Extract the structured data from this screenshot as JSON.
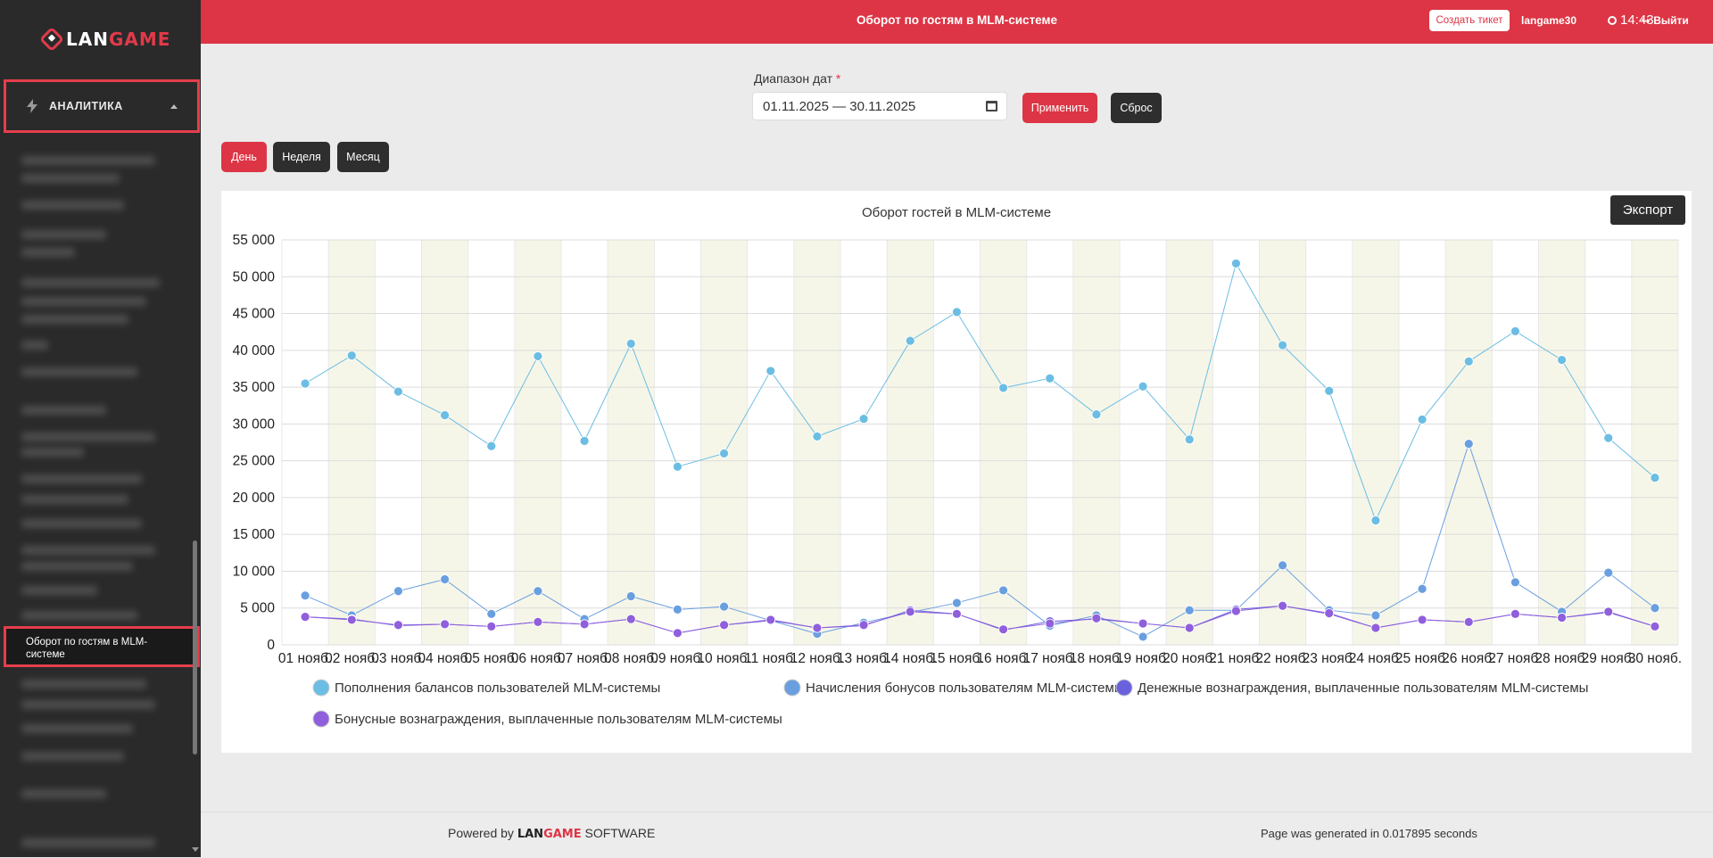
{
  "app": {
    "logo_prefix": "LAN",
    "logo_suffix": "GAME"
  },
  "header": {
    "title": "Оборот по гостям в MLM-системе",
    "ticket_label": "Создать тикет",
    "user": "langame30",
    "time": "14:43",
    "logout_label": "Выйти"
  },
  "sidebar": {
    "section_label": "АНАЛИТИКА",
    "active_item": "Оборот по гостям в MLM-системе"
  },
  "filters": {
    "date_label": "Диапазон дат",
    "required_mark": "*",
    "date_value": "01.11.2025 — 30.11.2025",
    "apply_label": "Применить",
    "reset_label": "Сброс",
    "period_day": "День",
    "period_week": "Неделя",
    "period_month": "Месяц"
  },
  "export_label": "Экспорт",
  "footer": {
    "powered_prefix": "Powered by",
    "brand_prefix": "LAN",
    "brand_suffix": "GAME",
    "powered_suffix": "SOFTWARE",
    "generated": "Page was generated in 0.017895 seconds"
  },
  "chart_data": {
    "type": "line",
    "title": "Оборот гостей в MLM-системе",
    "ylim": [
      0,
      55000
    ],
    "yticks": [
      0,
      5000,
      10000,
      15000,
      20000,
      25000,
      30000,
      35000,
      40000,
      45000,
      50000,
      55000
    ],
    "ytick_labels": [
      "0",
      "5 000",
      "10 000",
      "15 000",
      "20 000",
      "25 000",
      "30 000",
      "35 000",
      "40 000",
      "45 000",
      "50 000",
      "55 000"
    ],
    "categories": [
      "01 нояб.",
      "02 нояб.",
      "03 нояб.",
      "04 нояб.",
      "05 нояб.",
      "06 нояб.",
      "07 нояб.",
      "08 нояб.",
      "09 нояб.",
      "10 нояб.",
      "11 нояб.",
      "12 нояб.",
      "13 нояб.",
      "14 нояб.",
      "15 нояб.",
      "16 нояб.",
      "17 нояб.",
      "18 нояб.",
      "19 нояб.",
      "20 нояб.",
      "21 нояб.",
      "22 нояб.",
      "23 нояб.",
      "24 нояб.",
      "25 нояб.",
      "26 нояб.",
      "27 нояб.",
      "28 нояб.",
      "29 нояб.",
      "30 нояб."
    ],
    "grid": true,
    "legend_position": "bottom",
    "series": [
      {
        "name": "Пополнения балансов пользователей MLM-системы",
        "color": "#6cbde3",
        "values": [
          35500,
          39300,
          34400,
          31200,
          27000,
          39200,
          27700,
          40900,
          24200,
          26000,
          37200,
          28300,
          30700,
          41300,
          45200,
          34900,
          36200,
          31300,
          35100,
          27900,
          51800,
          40700,
          34500,
          16900,
          30600,
          38500,
          42600,
          38700,
          28100,
          22700
        ]
      },
      {
        "name": "Начисления бонусов пользователям MLM-системы",
        "color": "#6a9fdf",
        "values": [
          6700,
          4000,
          7300,
          8900,
          4200,
          7300,
          3500,
          6600,
          4800,
          5200,
          3300,
          1500,
          3000,
          4400,
          5700,
          7400,
          2600,
          4000,
          1100,
          4700,
          4700,
          10800,
          4700,
          4000,
          7600,
          27300,
          8500,
          4500,
          9800,
          5000
        ]
      },
      {
        "name": "Денежные вознаграждения, выплаченные пользователям MLM-системы",
        "color": "#6a62dd",
        "values": [
          3800,
          3500,
          2600,
          2800,
          2500,
          3100,
          2800,
          3500,
          1600,
          2700,
          3300,
          2300,
          2600,
          4700,
          4200,
          2000,
          3200,
          3500,
          2900,
          2300,
          4800,
          5300,
          4200,
          2300,
          3400,
          3100,
          4200,
          3700,
          4400,
          2500
        ]
      },
      {
        "name": "Бонусные вознаграждения, выплаченные пользователям MLM-системы",
        "color": "#8f5fdc",
        "values": [
          3800,
          3400,
          2700,
          2800,
          2500,
          3100,
          2800,
          3500,
          1600,
          2700,
          3400,
          2300,
          2700,
          4500,
          4200,
          2100,
          2900,
          3600,
          2900,
          2300,
          4600,
          5300,
          4300,
          2300,
          3400,
          3100,
          4200,
          3700,
          4500,
          2500
        ]
      }
    ]
  }
}
